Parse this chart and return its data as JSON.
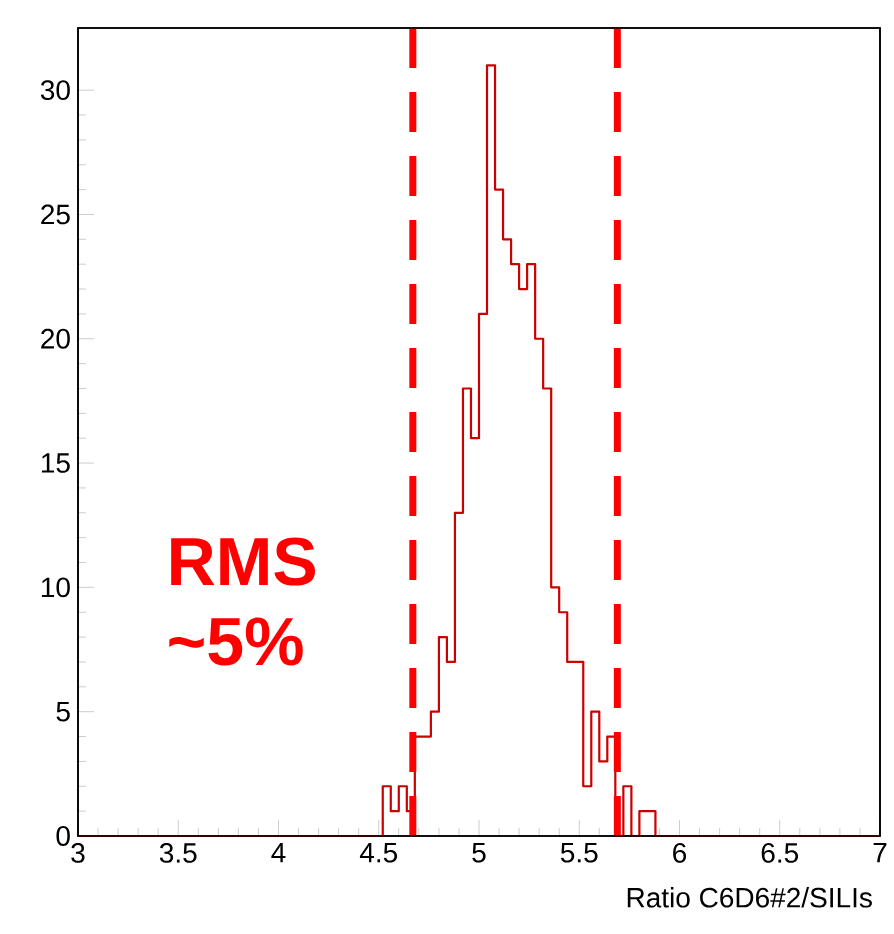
{
  "chart_data": {
    "type": "histogram",
    "xlabel": "Ratio C6D6#2/SILIs",
    "bins": [
      3,
      3.04,
      3.08,
      3.12,
      3.16,
      3.2,
      3.24,
      3.28,
      3.32,
      3.36,
      3.4,
      3.44,
      3.48,
      3.52,
      3.56,
      3.6,
      3.64,
      3.68,
      3.72,
      3.76,
      3.8,
      3.84,
      3.88,
      3.92,
      3.96,
      4,
      4.04,
      4.08,
      4.12,
      4.16,
      4.2,
      4.24,
      4.28,
      4.32,
      4.36,
      4.4,
      4.44,
      4.48,
      4.52,
      4.56,
      4.6,
      4.64,
      4.68,
      4.72,
      4.76,
      4.8,
      4.84,
      4.88,
      4.92,
      4.96,
      5,
      5.04,
      5.08,
      5.12,
      5.16,
      5.2,
      5.24,
      5.28,
      5.32,
      5.36,
      5.4,
      5.44,
      5.48,
      5.52,
      5.56,
      5.6,
      5.64,
      5.68,
      5.72,
      5.76,
      5.8,
      5.84,
      5.88,
      5.92,
      5.96,
      6,
      6.04,
      6.08,
      6.12,
      6.16,
      6.2,
      6.24,
      6.28,
      6.32,
      6.36,
      6.4,
      6.44,
      6.48,
      6.52,
      6.56,
      6.6,
      6.64,
      6.68,
      6.72,
      6.76,
      6.8,
      6.84,
      6.88,
      6.92,
      6.96,
      7
    ],
    "values": [
      0,
      0,
      0,
      0,
      0,
      0,
      0,
      0,
      0,
      0,
      0,
      0,
      0,
      0,
      0,
      0,
      0,
      0,
      0,
      0,
      0,
      0,
      0,
      0,
      0,
      0,
      0,
      0,
      0,
      0,
      0,
      0,
      0,
      0,
      0,
      0,
      0,
      0,
      2,
      1,
      2,
      1,
      4,
      4,
      5,
      8,
      7,
      13,
      18,
      16,
      21,
      31,
      26,
      24,
      23,
      22,
      23,
      20,
      18,
      10,
      9,
      7,
      7,
      2,
      5,
      3,
      4,
      0,
      2,
      0,
      1,
      1,
      0,
      0,
      0,
      0,
      0,
      0,
      0,
      0,
      0,
      0,
      0,
      0,
      0,
      0,
      0,
      0,
      0,
      0,
      0,
      0,
      0,
      0,
      0,
      0,
      0,
      0,
      0,
      0
    ],
    "color": "#cc0000",
    "xlim": [
      3,
      7
    ],
    "ylim": [
      0,
      32.5
    ],
    "xticks": [
      3,
      3.5,
      4,
      4.5,
      5,
      5.5,
      6,
      6.5,
      7
    ],
    "yticks": [
      0,
      5,
      10,
      15,
      20,
      25,
      30
    ],
    "ref_lines": [
      {
        "axis": "x",
        "value": 4.67,
        "color": "#ff0000",
        "line_style": "dashed"
      },
      {
        "axis": "x",
        "value": 5.69,
        "color": "#ff0000",
        "line_style": "dashed"
      }
    ],
    "annotations": [
      "RMS ~5%"
    ]
  }
}
